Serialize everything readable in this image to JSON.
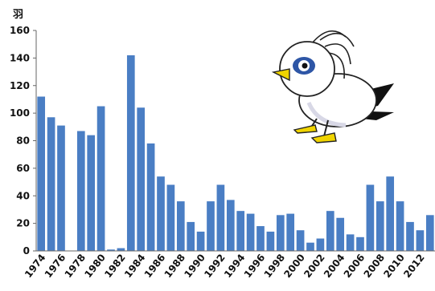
{
  "chart_data": {
    "type": "bar",
    "ylabel": "羽",
    "ylim": [
      0,
      160
    ],
    "yticks": [
      0,
      20,
      40,
      60,
      80,
      100,
      120,
      140,
      160
    ],
    "grid": false,
    "bar_color": "#4a7ec4",
    "categories": [
      "1974",
      "1975",
      "1976",
      "1977",
      "1978",
      "1979",
      "1980",
      "1981",
      "1982",
      "1983",
      "1984",
      "1985",
      "1986",
      "1987",
      "1988",
      "1989",
      "1990",
      "1991",
      "1992",
      "1993",
      "1994",
      "1995",
      "1996",
      "1997",
      "1998",
      "1999",
      "2000",
      "2001",
      "2002",
      "2003",
      "2004",
      "2005",
      "2006",
      "2007",
      "2008",
      "2009",
      "2010",
      "2011",
      "2012",
      "2013"
    ],
    "xtick_labels": [
      "1974",
      "1976",
      "1978",
      "1980",
      "1982",
      "1984",
      "1986",
      "1988",
      "1990",
      "1992",
      "1994",
      "1996",
      "1998",
      "2000",
      "2002",
      "2004",
      "2006",
      "2008",
      "2010",
      "2012"
    ],
    "values": [
      112,
      97,
      91,
      0,
      87,
      84,
      105,
      1,
      2,
      142,
      104,
      78,
      54,
      48,
      36,
      21,
      14,
      36,
      48,
      37,
      29,
      27,
      18,
      14,
      26,
      27,
      15,
      6,
      9,
      29,
      24,
      12,
      10,
      48,
      36,
      54,
      36,
      21,
      15,
      26
    ]
  },
  "illustration": {
    "icon": "cartoon-bird-mascot-icon",
    "colors": {
      "beak": "#f0d400",
      "eye_ring": "#2e56a6",
      "wing": "#111111",
      "feet": "#f0d400"
    }
  }
}
